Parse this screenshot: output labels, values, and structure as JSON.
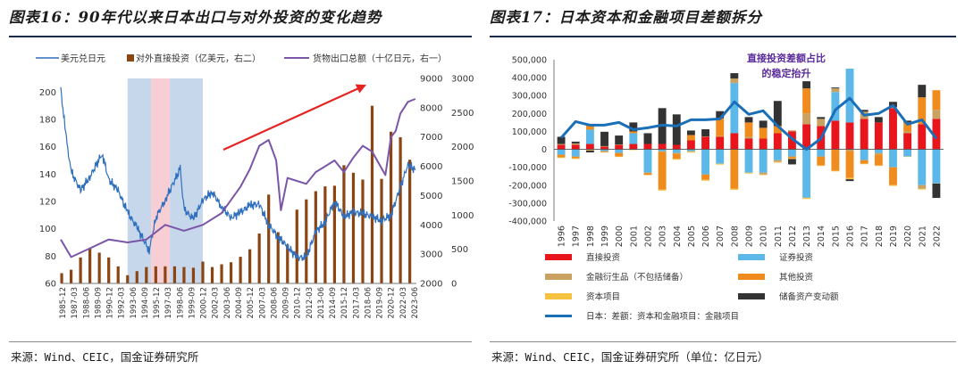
{
  "left": {
    "title": "图表16：90年代以来日本出口与对外投资的变化趋势",
    "source": "来源：Wind、CEIC，国金证券研究所",
    "legend": [
      "美元兑日元",
      "对外直接投资（亿美元，右二）",
      "货物出口总额（十亿日元，右一）"
    ],
    "colors": {
      "fx": "#2f6fbd",
      "fdi": "#8b4513",
      "exports": "#7b55a7",
      "band_blue": "#bcd0e8",
      "band_red": "#f4c6cc",
      "arrow": "#e52421"
    },
    "axis_left_ticks": [
      "200",
      "180",
      "160",
      "140",
      "120",
      "100",
      "80",
      "60"
    ],
    "axis_right1_ticks": [
      "9000",
      "8000",
      "7000",
      "6000",
      "5000",
      "4000",
      "3000",
      "2000"
    ],
    "axis_right2_ticks": [
      "3000",
      "2500",
      "2000",
      "1500",
      "1000",
      "500",
      "0"
    ],
    "x_ticks": [
      "1985-12",
      "1987-03",
      "1988-06",
      "1989-09",
      "1990-12",
      "1992-03",
      "1993-06",
      "1994-09",
      "1995-12",
      "1997-03",
      "1998-06",
      "1999-09",
      "2000-12",
      "2002-03",
      "2003-06",
      "2004-09",
      "2005-12",
      "2007-03",
      "2008-06",
      "2009-09",
      "2010-12",
      "2012-03",
      "2013-06",
      "2014-09",
      "2015-12",
      "2017-03",
      "2018-06",
      "2019-09",
      "2020-12",
      "2022-03",
      "2023-06"
    ]
  },
  "right": {
    "title": "图表17：日本资本和金融项目差额拆分",
    "source": "来源：Wind、CEIC，国金证券研究所（单位：亿日元）",
    "annotation": [
      "直接投资差额占比",
      "的稳定抬升"
    ]
  },
  "chart_data": [
    {
      "type": "line+bar",
      "title": "图表16：90年代以来日本出口与对外投资的变化趋势",
      "series": [
        {
          "name": "美元兑日元",
          "axis": "left",
          "ylim": [
            60,
            210
          ],
          "x": [
            1985.9,
            1986.5,
            1987,
            1988,
            1989,
            1990.3,
            1991,
            1992,
            1993,
            1994,
            1995.3,
            1996,
            1997,
            1998.6,
            1999,
            2000,
            2001,
            2002,
            2003,
            2004,
            2005,
            2006,
            2007,
            2008,
            2009,
            2010,
            2011,
            2012,
            2013,
            2014,
            2015,
            2016,
            2017,
            2018,
            2019,
            2020,
            2021,
            2022.8,
            2023.6
          ],
          "values": [
            202,
            165,
            142,
            128,
            138,
            155,
            136,
            128,
            112,
            101,
            84,
            108,
            121,
            144,
            114,
            107,
            121,
            127,
            116,
            108,
            112,
            117,
            118,
            103,
            94,
            87,
            79,
            79,
            98,
            105,
            120,
            109,
            112,
            111,
            109,
            106,
            110,
            147,
            143
          ]
        },
        {
          "name": "货物出口总额（十亿日元，右一）",
          "axis": "right1",
          "ylim": [
            2000,
            9000
          ],
          "x": [
            1985.9,
            1987,
            1989,
            1991,
            1993,
            1995,
            1997,
            1999,
            2001,
            2003,
            2005,
            2006,
            2007,
            2008,
            2008.8,
            2009.3,
            2010,
            2011,
            2012,
            2013,
            2014,
            2015,
            2016,
            2017,
            2018,
            2019,
            2020.4,
            2021,
            2021.5,
            2022,
            2022.8,
            2023.6
          ],
          "values": [
            3500,
            2900,
            3200,
            3500,
            3400,
            3500,
            4000,
            3800,
            4000,
            4400,
            5300,
            5900,
            6700,
            6900,
            6200,
            4500,
            5600,
            5500,
            5400,
            5800,
            6000,
            6200,
            5800,
            6300,
            6700,
            6500,
            5700,
            7000,
            7200,
            7800,
            8200,
            8300
          ]
        },
        {
          "name": "对外直接投资（亿美元，右二）",
          "axis": "right2",
          "ylim": [
            0,
            3000
          ],
          "type": "bar",
          "x": [
            1986,
            1987,
            1988,
            1989,
            1990,
            1991,
            1992,
            1993,
            1994,
            1995,
            1996,
            1997,
            1998,
            1999,
            2000,
            2001,
            2002,
            2003,
            2004,
            2005,
            2006,
            2007,
            2008,
            2009,
            2010,
            2011,
            2012,
            2013,
            2014,
            2015,
            2016,
            2017,
            2018,
            2019,
            2020,
            2021,
            2022,
            2023
          ],
          "values": [
            150,
            200,
            380,
            520,
            450,
            380,
            250,
            120,
            180,
            240,
            250,
            250,
            250,
            240,
            230,
            320,
            240,
            280,
            310,
            390,
            500,
            730,
            1300,
            750,
            570,
            1080,
            1230,
            1350,
            1420,
            1430,
            1730,
            1620,
            1520,
            2600,
            1530,
            2220,
            2140,
            1810
          ]
        }
      ],
      "shaded_periods": [
        {
          "from": 1993.0,
          "to": 1995.5,
          "color": "blue"
        },
        {
          "from": 1995.5,
          "to": 1997.5,
          "color": "red"
        },
        {
          "from": 1997.5,
          "to": 2001.0,
          "color": "blue"
        }
      ],
      "left_axis_ticks": [
        60,
        80,
        100,
        120,
        140,
        160,
        180,
        200
      ],
      "right1_axis_ticks": [
        2000,
        3000,
        4000,
        5000,
        6000,
        7000,
        8000,
        9000
      ],
      "right2_axis_ticks": [
        0,
        500,
        1000,
        1500,
        2000,
        2500,
        3000
      ]
    },
    {
      "type": "stacked-bar+line",
      "title": "图表17：日本资本和金融项目差额拆分",
      "categories": [
        "1996",
        "1997",
        "1998",
        "1999",
        "2000",
        "2001",
        "2002",
        "2003",
        "2004",
        "2005",
        "2006",
        "2007",
        "2008",
        "2009",
        "2010",
        "2011",
        "2012",
        "2013",
        "2014",
        "2015",
        "2016",
        "2017",
        "2018",
        "2019",
        "2020",
        "2021",
        "2022"
      ],
      "ylim": [
        -400000,
        500000
      ],
      "yticks": [
        -400000,
        -300000,
        -200000,
        -100000,
        0,
        100000,
        200000,
        300000,
        400000,
        500000
      ],
      "series": [
        {
          "name": "直接投资",
          "color": "#e8151c",
          "values": [
            25000,
            25000,
            30000,
            15000,
            25000,
            30000,
            30000,
            30000,
            25000,
            50000,
            70000,
            70000,
            90000,
            60000,
            60000,
            90000,
            100000,
            140000,
            130000,
            160000,
            150000,
            170000,
            150000,
            230000,
            90000,
            140000,
            170000
          ]
        },
        {
          "name": "证券投资",
          "color": "#5bb8e8",
          "values": [
            -30000,
            -40000,
            80000,
            -10000,
            -20000,
            60000,
            -130000,
            -10000,
            -20000,
            -10000,
            -140000,
            -80000,
            280000,
            -130000,
            -130000,
            -60000,
            -40000,
            -270000,
            -40000,
            160000,
            300000,
            -60000,
            -20000,
            -100000,
            -40000,
            -200000,
            -190000
          ]
        },
        {
          "name": "金融衍生品（不包括储备）",
          "color": "#c9a262",
          "values": [
            5000,
            8000,
            -5000,
            3000,
            2000,
            -2000,
            -2000,
            -5000,
            -3000,
            -3000,
            2000,
            3000,
            25000,
            10000,
            -10000,
            -10000,
            6000,
            60000,
            40000,
            20000,
            -10000,
            40000,
            -10000,
            5000,
            10000,
            -20000,
            50000
          ]
        },
        {
          "name": "其他投资",
          "color": "#f08c1e",
          "values": [
            -15000,
            -10000,
            30000,
            -5000,
            -20000,
            10000,
            -10000,
            -210000,
            -30000,
            30000,
            -30000,
            100000,
            -220000,
            80000,
            60000,
            40000,
            -10000,
            140000,
            -50000,
            -120000,
            -150000,
            -20000,
            -60000,
            -100000,
            50000,
            150000,
            110000
          ]
        },
        {
          "name": "资本项目",
          "color": "#f5c242",
          "values": [
            -3000,
            -4000,
            -2000,
            -2000,
            -1000,
            -1000,
            -1000,
            -5000,
            -5000,
            -5000,
            -5000,
            -5000,
            -6000,
            -5000,
            -4000,
            -4000,
            -4000,
            -7000,
            -2000,
            -3000,
            -7000,
            -3000,
            -2000,
            -4000,
            -2000,
            -4000,
            -1000
          ]
        },
        {
          "name": "储备资产变动额",
          "color": "#333333",
          "values": [
            40000,
            10000,
            -10000,
            80000,
            50000,
            50000,
            60000,
            200000,
            170000,
            25000,
            40000,
            40000,
            30000,
            30000,
            40000,
            140000,
            -30000,
            40000,
            10000,
            5000,
            -10000,
            10000,
            30000,
            30000,
            10000,
            70000,
            -80000
          ]
        },
        {
          "name": "日本：差额：资本和金融项目：金融项目",
          "type": "line",
          "color": "#1a6fb8",
          "values": [
            65000,
            155000,
            135000,
            135000,
            150000,
            110000,
            120000,
            135000,
            130000,
            165000,
            165000,
            170000,
            265000,
            195000,
            215000,
            130000,
            60000,
            0,
            60000,
            220000,
            285000,
            190000,
            200000,
            245000,
            140000,
            165000,
            60000
          ]
        }
      ],
      "annotation": "直接投资差额占比的稳定抬升"
    }
  ]
}
